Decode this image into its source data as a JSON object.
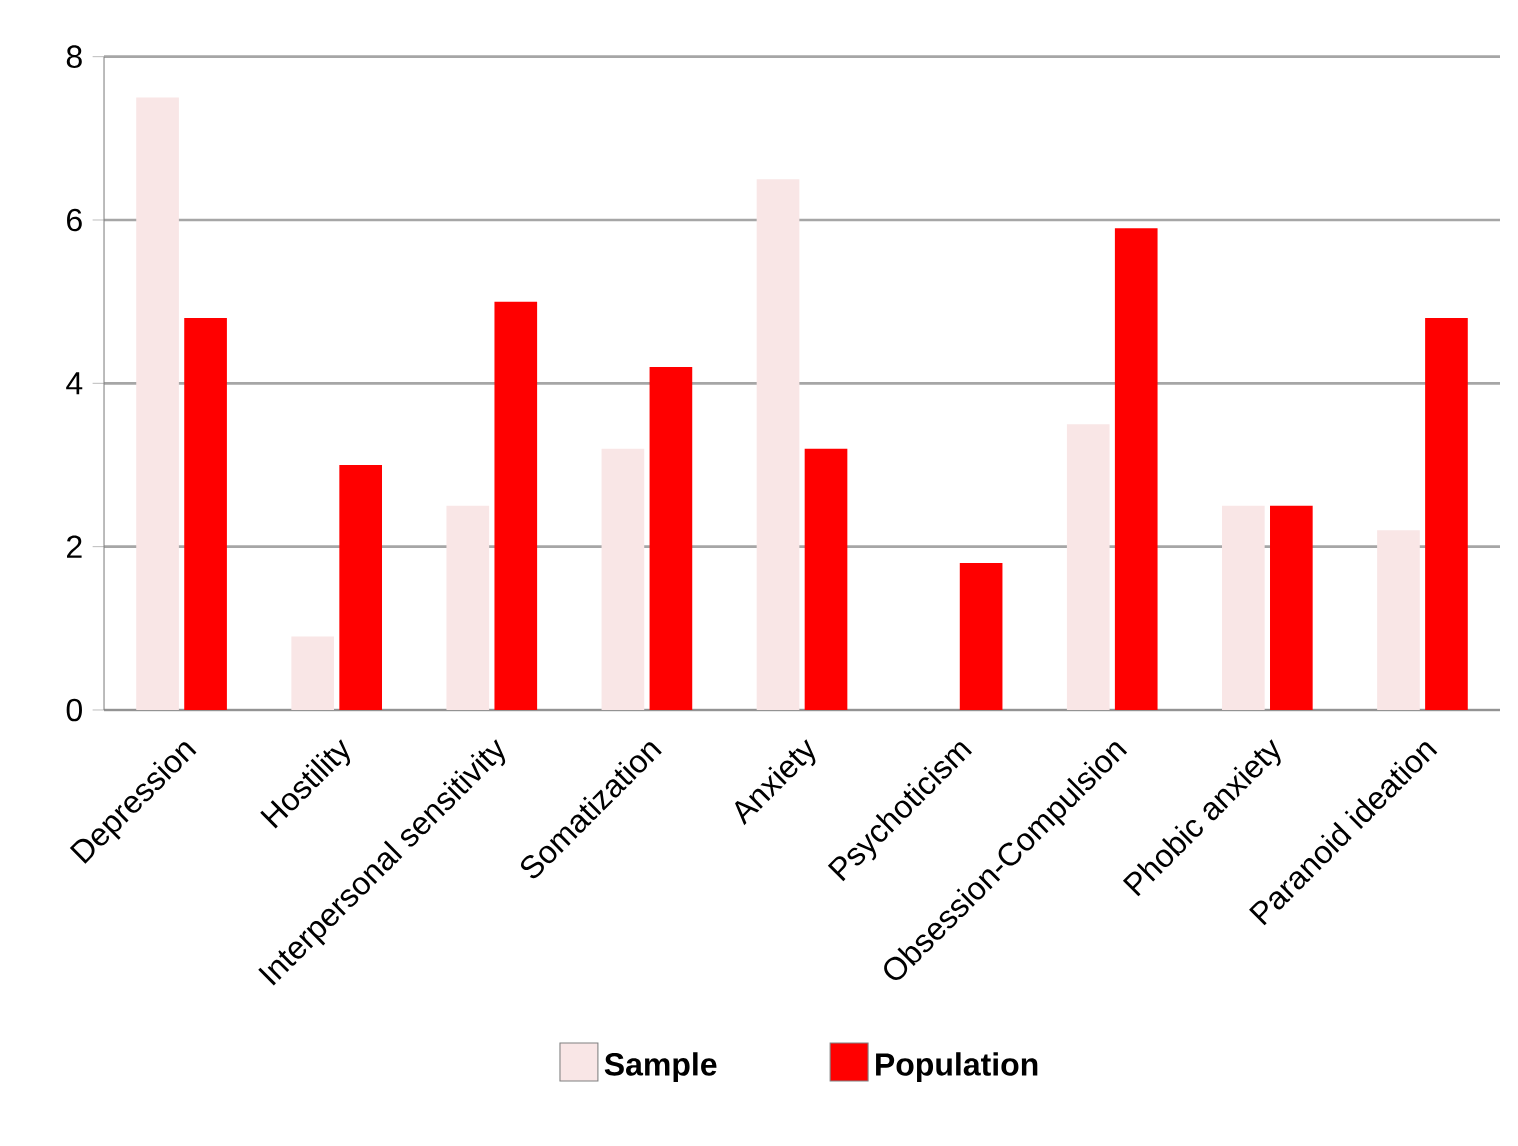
{
  "chart_data": {
    "type": "bar",
    "categories": [
      "Depression",
      "Hostility",
      "Interpersonal sensitivity",
      "Somatization",
      "Anxiety",
      "Psychoticism",
      "Obsession-Compulsion",
      "Phobic anxiety",
      "Paranoid ideation"
    ],
    "series": [
      {
        "name": "Sample",
        "color": "#f9e6e6",
        "values": [
          7.5,
          0.9,
          2.5,
          3.2,
          6.5,
          0,
          3.5,
          2.5,
          2.2
        ]
      },
      {
        "name": "Population",
        "color": "#ff0000",
        "values": [
          4.8,
          3.0,
          5.0,
          4.2,
          3.2,
          1.8,
          5.9,
          2.5,
          4.8
        ]
      }
    ],
    "ylim": [
      0,
      8
    ],
    "yticks": [
      0,
      2,
      4,
      6,
      8
    ],
    "grid": "y",
    "legend": "bottom"
  }
}
